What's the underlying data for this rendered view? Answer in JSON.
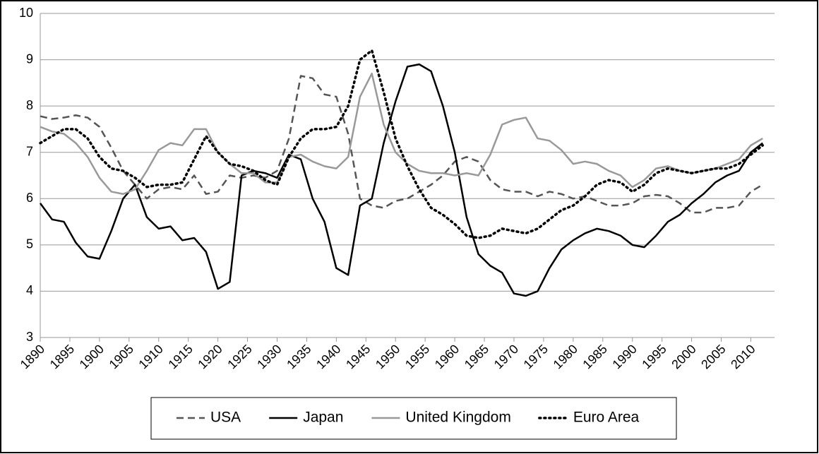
{
  "chart_data": {
    "type": "line",
    "x": [
      1890,
      1892,
      1894,
      1896,
      1898,
      1900,
      1902,
      1904,
      1906,
      1908,
      1910,
      1912,
      1914,
      1916,
      1918,
      1920,
      1922,
      1924,
      1926,
      1928,
      1930,
      1932,
      1934,
      1936,
      1938,
      1940,
      1942,
      1944,
      1946,
      1948,
      1950,
      1952,
      1954,
      1956,
      1958,
      1960,
      1962,
      1964,
      1966,
      1968,
      1970,
      1972,
      1974,
      1976,
      1978,
      1980,
      1982,
      1984,
      1986,
      1988,
      1990,
      1992,
      1994,
      1996,
      1998,
      2000,
      2002,
      2004,
      2006,
      2008,
      2010,
      2012
    ],
    "series": [
      {
        "name": "USA",
        "color": "#555555",
        "style": "dashed",
        "values": [
          7.78,
          7.72,
          7.75,
          7.8,
          7.75,
          7.55,
          7.1,
          6.6,
          6.3,
          6.0,
          6.2,
          6.25,
          6.2,
          6.5,
          6.1,
          6.15,
          6.5,
          6.45,
          6.5,
          6.45,
          6.6,
          7.3,
          8.65,
          8.6,
          8.25,
          8.2,
          7.4,
          6.0,
          5.85,
          5.8,
          5.95,
          6.0,
          6.15,
          6.3,
          6.5,
          6.8,
          6.9,
          6.8,
          6.4,
          6.2,
          6.15,
          6.15,
          6.05,
          6.15,
          6.1,
          6.0,
          6.05,
          5.95,
          5.85,
          5.85,
          5.9,
          6.05,
          6.08,
          6.05,
          5.9,
          5.7,
          5.7,
          5.8,
          5.8,
          5.85,
          6.15,
          6.3
        ]
      },
      {
        "name": "Japan",
        "color": "#000000",
        "style": "solid",
        "values": [
          5.9,
          5.55,
          5.5,
          5.05,
          4.75,
          4.7,
          5.3,
          6.0,
          6.3,
          5.6,
          5.35,
          5.4,
          5.1,
          5.15,
          4.85,
          4.05,
          4.2,
          6.5,
          6.6,
          6.55,
          6.45,
          6.95,
          6.85,
          6.0,
          5.5,
          4.5,
          4.35,
          5.85,
          6.0,
          7.2,
          8.1,
          8.85,
          8.9,
          8.75,
          8.0,
          7.0,
          5.6,
          4.8,
          4.55,
          4.4,
          3.95,
          3.9,
          4.0,
          4.5,
          4.9,
          5.1,
          5.25,
          5.35,
          5.3,
          5.2,
          5.0,
          4.95,
          5.2,
          5.5,
          5.65,
          5.9,
          6.1,
          6.35,
          6.5,
          6.6,
          7.0,
          7.2
        ]
      },
      {
        "name": "United Kingdom",
        "color": "#999999",
        "style": "solid",
        "values": [
          7.55,
          7.45,
          7.4,
          7.2,
          6.9,
          6.45,
          6.15,
          6.1,
          6.2,
          6.6,
          7.05,
          7.2,
          7.15,
          7.5,
          7.5,
          7.0,
          6.75,
          6.55,
          6.55,
          6.35,
          6.35,
          6.9,
          6.95,
          6.8,
          6.7,
          6.65,
          6.9,
          8.2,
          8.7,
          7.6,
          7.0,
          6.75,
          6.6,
          6.55,
          6.55,
          6.5,
          6.55,
          6.5,
          6.95,
          7.6,
          7.7,
          7.75,
          7.3,
          7.25,
          7.05,
          6.75,
          6.8,
          6.75,
          6.6,
          6.5,
          6.25,
          6.4,
          6.65,
          6.7,
          6.6,
          6.55,
          6.6,
          6.65,
          6.75,
          6.85,
          7.15,
          7.3
        ]
      },
      {
        "name": "Euro Area",
        "color": "#000000",
        "style": "dotted",
        "values": [
          7.2,
          7.35,
          7.5,
          7.5,
          7.3,
          6.9,
          6.65,
          6.6,
          6.45,
          6.25,
          6.3,
          6.3,
          6.35,
          6.85,
          7.35,
          7.0,
          6.75,
          6.7,
          6.6,
          6.4,
          6.3,
          6.9,
          7.3,
          7.5,
          7.5,
          7.55,
          8.0,
          9.0,
          9.2,
          8.3,
          7.3,
          6.7,
          6.2,
          5.8,
          5.65,
          5.45,
          5.2,
          5.15,
          5.2,
          5.35,
          5.3,
          5.25,
          5.35,
          5.55,
          5.75,
          5.85,
          6.05,
          6.3,
          6.4,
          6.35,
          6.15,
          6.3,
          6.55,
          6.65,
          6.6,
          6.55,
          6.6,
          6.65,
          6.65,
          6.75,
          6.95,
          7.15
        ]
      }
    ],
    "xlim": [
      1890,
      2014
    ],
    "xticks": [
      1890,
      1895,
      1900,
      1905,
      1910,
      1915,
      1920,
      1925,
      1930,
      1935,
      1940,
      1945,
      1950,
      1955,
      1960,
      1965,
      1970,
      1975,
      1980,
      1985,
      1990,
      1995,
      2000,
      2005,
      2010
    ],
    "ylim": [
      3,
      10
    ],
    "yticks": [
      3,
      4,
      5,
      6,
      7,
      8,
      9,
      10
    ],
    "grid": true,
    "legend": "bottom"
  }
}
